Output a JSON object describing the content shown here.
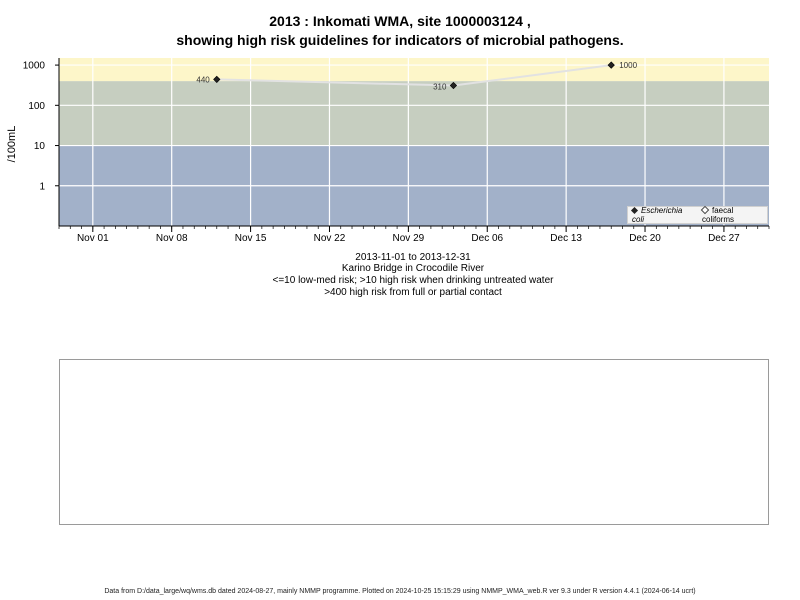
{
  "chart_data": {
    "type": "scatter",
    "title": "2013 : Inkomati WMA, site 1000003124 ,",
    "subtitle": "showing high risk guidelines for indicators of microbial pathogens.",
    "xlabel_lines": [
      "2013-11-01 to 2013-12-31",
      "Karino Bridge in Crocodile River",
      "<=10 low-med risk; >10 high risk when drinking untreated water",
      ">400 high risk from full or partial contact"
    ],
    "ylabel": "/100mL",
    "y_scale": "log",
    "y_ticks": [
      1,
      10,
      100,
      1000
    ],
    "y_tick_labels": [
      "1",
      "10",
      "100",
      "1000"
    ],
    "x_tick_labels": [
      "Nov 01",
      "Nov 08",
      "Nov 15",
      "Nov 22",
      "Nov 29",
      "Dec 06",
      "Dec 13",
      "Dec 20",
      "Dec 27"
    ],
    "x_ticks": [
      "2013-11-01",
      "2013-11-08",
      "2013-11-15",
      "2013-11-22",
      "2013-11-29",
      "2013-12-06",
      "2013-12-13",
      "2013-12-20",
      "2013-12-27"
    ],
    "xlim": [
      "2013-10-29",
      "2013-12-31"
    ],
    "ylim": [
      0.1,
      1500
    ],
    "grid": true,
    "bands": [
      {
        "from": 0.1,
        "to": 10,
        "color": "#a2b1c9"
      },
      {
        "from": 10,
        "to": 400,
        "color": "#c6cec0"
      },
      {
        "from": 400,
        "to": 1500,
        "color": "#fdf6c9"
      }
    ],
    "series": [
      {
        "name": "Escherichia coli",
        "marker": "filled-diamond",
        "color": "#222222",
        "points": [
          {
            "x": "2013-11-12",
            "y": 440,
            "label": "440"
          },
          {
            "x": "2013-12-03",
            "y": 310,
            "label": "310"
          },
          {
            "x": "2013-12-17",
            "y": 1000,
            "label": "1000"
          }
        ]
      },
      {
        "name": "faecal coliforms",
        "marker": "open-diamond",
        "color": "#444444",
        "points": []
      }
    ],
    "line_color": "#e2e2e2",
    "legend_position": "bottom-right"
  },
  "footer": "Data from D:/data_large/wq/wms.db dated 2024-08-27, mainly NMMP programme. Plotted on 2024-10-25 15:15:29 using NMMP_WMA_web.R ver 9.3 under R version 4.4.1 (2024-06-14 ucrt)"
}
